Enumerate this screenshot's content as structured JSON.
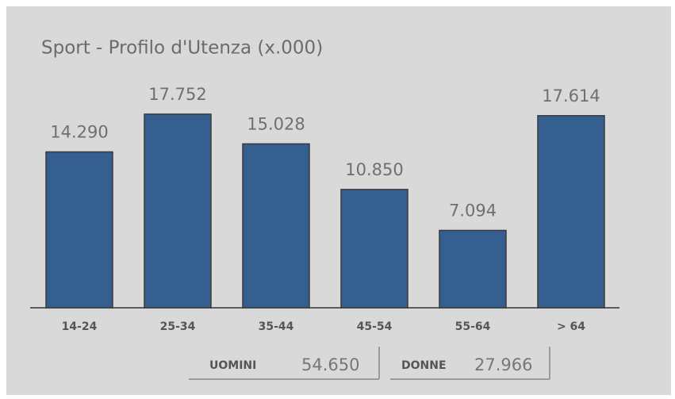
{
  "chart_data": {
    "type": "bar",
    "title": "Sport - Profilo d'Utenza (x.000)",
    "categories": [
      "14-24",
      "25-34",
      "35-44",
      "45-54",
      "55-64",
      "> 64"
    ],
    "values": [
      14290,
      17752,
      15028,
      10850,
      7094,
      17614
    ],
    "value_labels": [
      "14.290",
      "17.752",
      "15.028",
      "10.850",
      "7.094",
      "17.614"
    ],
    "color": "#355f91",
    "ylim": [
      0,
      20000
    ],
    "summary": [
      {
        "label": "UOMINI",
        "value": "54.650"
      },
      {
        "label": "DONNE",
        "value": "27.966"
      }
    ]
  }
}
